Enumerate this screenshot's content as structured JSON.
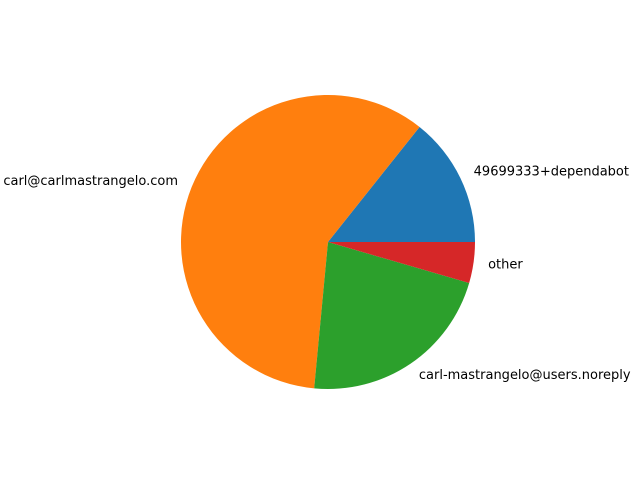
{
  "chart_data": {
    "type": "pie",
    "title": "",
    "start_angle_deg": 0,
    "direction": "counterclockwise",
    "labels": [
      "49699333+dependabot",
      "carl@carlmastrangelo.com",
      "carl-mastrangelo@users.noreply",
      "other"
    ],
    "values": [
      14.3,
      59.2,
      22.0,
      4.5
    ],
    "colors": [
      "#1f77b4",
      "#ff7f0e",
      "#2ca02c",
      "#d62728"
    ],
    "legend": "none"
  }
}
